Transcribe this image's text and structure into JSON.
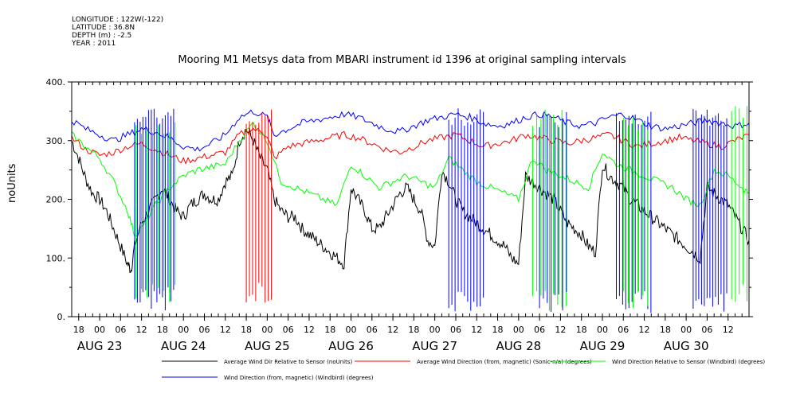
{
  "meta": {
    "longitude": "LONGITUDE : 122W(-122)",
    "latitude": "LATITUDE : 36.8N",
    "depth": "DEPTH (m) : -2.5",
    "year": "YEAR : 2011"
  },
  "chart_data": {
    "type": "line",
    "title": "Mooring M1 Metsys data from MBARI instrument id 1396 at original sampling intervals",
    "ylabel": "noUnits",
    "xlabel": "",
    "ylim": [
      0,
      400
    ],
    "yticks": [
      "0.",
      "100.",
      "200.",
      "300.",
      "400."
    ],
    "x_range_hours": [
      -8,
      186
    ],
    "hour_ticks": [
      "18",
      "00",
      "06",
      "12",
      "18",
      "00",
      "06",
      "12",
      "18",
      "00",
      "06",
      "12",
      "18",
      "00",
      "06",
      "12",
      "18",
      "00",
      "06",
      "12",
      "18",
      "00",
      "06",
      "12",
      "18",
      "00",
      "06",
      "12",
      "18",
      "00",
      "06",
      "12"
    ],
    "day_labels": [
      "AUG 23",
      "AUG 24",
      "AUG 25",
      "AUG 26",
      "AUG 27",
      "AUG 28",
      "AUG 29",
      "AUG 30"
    ],
    "grid": false,
    "series": [
      {
        "name": "Average Wind Dir Relative to Sensor (noUnits)",
        "color": "#000000",
        "kind": "smooth",
        "points": [
          [
            -8,
            300
          ],
          [
            -6,
            270
          ],
          [
            -4,
            235
          ],
          [
            -2,
            210
          ],
          [
            0,
            200
          ],
          [
            2,
            180
          ],
          [
            4,
            150
          ],
          [
            6,
            120
          ],
          [
            8,
            90
          ],
          [
            9,
            80
          ],
          [
            10,
            120
          ],
          [
            12,
            160
          ],
          [
            14,
            180
          ],
          [
            16,
            200
          ],
          [
            18,
            220
          ],
          [
            20,
            200
          ],
          [
            22,
            180
          ],
          [
            24,
            170
          ],
          [
            26,
            190
          ],
          [
            28,
            200
          ],
          [
            30,
            210
          ],
          [
            32,
            200
          ],
          [
            34,
            200
          ],
          [
            36,
            230
          ],
          [
            38,
            240
          ],
          [
            40,
            300
          ],
          [
            42,
            320
          ],
          [
            44,
            300
          ],
          [
            46,
            270
          ],
          [
            48,
            250
          ],
          [
            50,
            200
          ],
          [
            52,
            180
          ],
          [
            54,
            170
          ],
          [
            56,
            170
          ],
          [
            58,
            150
          ],
          [
            60,
            140
          ],
          [
            62,
            130
          ],
          [
            64,
            120
          ],
          [
            66,
            110
          ],
          [
            68,
            100
          ],
          [
            70,
            90
          ],
          [
            72,
            220
          ],
          [
            74,
            200
          ],
          [
            76,
            180
          ],
          [
            78,
            150
          ],
          [
            80,
            150
          ],
          [
            82,
            170
          ],
          [
            84,
            190
          ],
          [
            86,
            210
          ],
          [
            88,
            220
          ],
          [
            90,
            200
          ],
          [
            92,
            180
          ],
          [
            94,
            130
          ],
          [
            96,
            120
          ],
          [
            98,
            250
          ],
          [
            100,
            230
          ],
          [
            102,
            200
          ],
          [
            104,
            180
          ],
          [
            106,
            170
          ],
          [
            108,
            160
          ],
          [
            110,
            150
          ],
          [
            112,
            140
          ],
          [
            114,
            130
          ],
          [
            116,
            120
          ],
          [
            118,
            100
          ],
          [
            120,
            90
          ],
          [
            122,
            240
          ],
          [
            124,
            230
          ],
          [
            126,
            220
          ],
          [
            128,
            210
          ],
          [
            130,
            200
          ],
          [
            132,
            180
          ],
          [
            134,
            160
          ],
          [
            136,
            150
          ],
          [
            138,
            140
          ],
          [
            140,
            120
          ],
          [
            142,
            110
          ],
          [
            144,
            260
          ],
          [
            146,
            240
          ],
          [
            148,
            230
          ],
          [
            150,
            220
          ],
          [
            152,
            200
          ],
          [
            154,
            190
          ],
          [
            156,
            180
          ],
          [
            158,
            170
          ],
          [
            160,
            160
          ],
          [
            162,
            150
          ],
          [
            164,
            140
          ],
          [
            166,
            130
          ],
          [
            168,
            120
          ],
          [
            170,
            110
          ],
          [
            172,
            100
          ],
          [
            174,
            220
          ],
          [
            176,
            210
          ],
          [
            178,
            200
          ],
          [
            180,
            190
          ],
          [
            182,
            170
          ],
          [
            184,
            150
          ],
          [
            186,
            130
          ]
        ]
      },
      {
        "name": "Average Wind Direction (from, magnetic) (Sonic-n/a) (degrees)",
        "color": "#ff0000",
        "kind": "smooth",
        "points": [
          [
            -8,
            305
          ],
          [
            -4,
            285
          ],
          [
            0,
            275
          ],
          [
            4,
            280
          ],
          [
            8,
            290
          ],
          [
            12,
            295
          ],
          [
            16,
            285
          ],
          [
            20,
            275
          ],
          [
            24,
            265
          ],
          [
            28,
            270
          ],
          [
            32,
            275
          ],
          [
            36,
            280
          ],
          [
            40,
            310
          ],
          [
            44,
            320
          ],
          [
            48,
            310
          ],
          [
            50,
            270
          ],
          [
            54,
            290
          ],
          [
            58,
            295
          ],
          [
            62,
            300
          ],
          [
            66,
            305
          ],
          [
            70,
            310
          ],
          [
            74,
            305
          ],
          [
            78,
            295
          ],
          [
            82,
            285
          ],
          [
            86,
            280
          ],
          [
            90,
            290
          ],
          [
            94,
            300
          ],
          [
            98,
            305
          ],
          [
            102,
            310
          ],
          [
            106,
            300
          ],
          [
            110,
            290
          ],
          [
            114,
            295
          ],
          [
            118,
            300
          ],
          [
            122,
            310
          ],
          [
            126,
            305
          ],
          [
            130,
            300
          ],
          [
            134,
            295
          ],
          [
            138,
            300
          ],
          [
            142,
            305
          ],
          [
            146,
            310
          ],
          [
            150,
            300
          ],
          [
            154,
            290
          ],
          [
            158,
            295
          ],
          [
            162,
            300
          ],
          [
            166,
            305
          ],
          [
            170,
            300
          ],
          [
            174,
            295
          ],
          [
            178,
            290
          ],
          [
            182,
            300
          ],
          [
            186,
            310
          ]
        ]
      },
      {
        "name": "Wind Direction Relative to Sensor (Windbird) (degrees)",
        "color": "#00ff00",
        "kind": "smooth",
        "points": [
          [
            -8,
            310
          ],
          [
            -4,
            290
          ],
          [
            0,
            270
          ],
          [
            4,
            230
          ],
          [
            8,
            180
          ],
          [
            10,
            140
          ],
          [
            12,
            150
          ],
          [
            16,
            190
          ],
          [
            20,
            220
          ],
          [
            24,
            240
          ],
          [
            28,
            250
          ],
          [
            32,
            255
          ],
          [
            36,
            260
          ],
          [
            40,
            300
          ],
          [
            44,
            330
          ],
          [
            48,
            300
          ],
          [
            52,
            230
          ],
          [
            56,
            220
          ],
          [
            60,
            210
          ],
          [
            64,
            200
          ],
          [
            68,
            190
          ],
          [
            72,
            260
          ],
          [
            76,
            240
          ],
          [
            80,
            220
          ],
          [
            84,
            230
          ],
          [
            88,
            240
          ],
          [
            92,
            230
          ],
          [
            96,
            220
          ],
          [
            100,
            270
          ],
          [
            104,
            250
          ],
          [
            108,
            230
          ],
          [
            112,
            220
          ],
          [
            116,
            210
          ],
          [
            120,
            200
          ],
          [
            124,
            270
          ],
          [
            128,
            250
          ],
          [
            132,
            240
          ],
          [
            136,
            230
          ],
          [
            140,
            220
          ],
          [
            144,
            280
          ],
          [
            148,
            260
          ],
          [
            152,
            250
          ],
          [
            156,
            240
          ],
          [
            160,
            230
          ],
          [
            164,
            220
          ],
          [
            168,
            200
          ],
          [
            172,
            190
          ],
          [
            176,
            250
          ],
          [
            180,
            240
          ],
          [
            184,
            220
          ],
          [
            186,
            210
          ]
        ]
      },
      {
        "name": "Wind Direction (from, magnetic) (Windbird) (degrees)",
        "color": "#0000ff",
        "kind": "smooth",
        "points": [
          [
            -8,
            335
          ],
          [
            -4,
            320
          ],
          [
            0,
            310
          ],
          [
            4,
            300
          ],
          [
            8,
            310
          ],
          [
            12,
            320
          ],
          [
            16,
            315
          ],
          [
            20,
            305
          ],
          [
            24,
            290
          ],
          [
            28,
            285
          ],
          [
            32,
            295
          ],
          [
            36,
            310
          ],
          [
            40,
            340
          ],
          [
            44,
            350
          ],
          [
            48,
            340
          ],
          [
            50,
            310
          ],
          [
            54,
            320
          ],
          [
            58,
            330
          ],
          [
            62,
            335
          ],
          [
            66,
            340
          ],
          [
            70,
            345
          ],
          [
            74,
            340
          ],
          [
            78,
            330
          ],
          [
            82,
            320
          ],
          [
            86,
            315
          ],
          [
            90,
            325
          ],
          [
            94,
            335
          ],
          [
            98,
            340
          ],
          [
            102,
            345
          ],
          [
            106,
            340
          ],
          [
            110,
            330
          ],
          [
            114,
            325
          ],
          [
            118,
            330
          ],
          [
            122,
            340
          ],
          [
            126,
            345
          ],
          [
            130,
            340
          ],
          [
            134,
            330
          ],
          [
            138,
            325
          ],
          [
            142,
            330
          ],
          [
            146,
            340
          ],
          [
            150,
            345
          ],
          [
            154,
            335
          ],
          [
            158,
            325
          ],
          [
            162,
            320
          ],
          [
            166,
            325
          ],
          [
            170,
            330
          ],
          [
            174,
            335
          ],
          [
            178,
            330
          ],
          [
            182,
            325
          ],
          [
            186,
            330
          ]
        ]
      }
    ],
    "spikes": [
      {
        "color": "#0000ff",
        "from": 10,
        "to": 22,
        "step": 0.8,
        "low": 10,
        "high": 355
      },
      {
        "color": "#00ff00",
        "from": 10.4,
        "to": 22,
        "step": 1.6,
        "low": 20,
        "high": 340
      },
      {
        "color": "#ff0000",
        "from": 42,
        "to": 50,
        "step": 0.9,
        "low": 20,
        "high": 355
      },
      {
        "color": "#0000ff",
        "from": 100,
        "to": 110,
        "step": 0.9,
        "low": 5,
        "high": 355
      },
      {
        "color": "#00ff00",
        "from": 124,
        "to": 134,
        "step": 1.2,
        "low": 10,
        "high": 355
      },
      {
        "color": "#0000ff",
        "from": 126,
        "to": 134,
        "step": 1.1,
        "low": 5,
        "high": 350
      },
      {
        "color": "#0000ff",
        "from": 148,
        "to": 158,
        "step": 0.9,
        "low": 5,
        "high": 355
      },
      {
        "color": "#00ff00",
        "from": 150,
        "to": 158,
        "step": 1.4,
        "low": 10,
        "high": 340
      },
      {
        "color": "#0000ff",
        "from": 170,
        "to": 180,
        "step": 0.8,
        "low": 5,
        "high": 355
      },
      {
        "color": "#00ff00",
        "from": 181,
        "to": 186,
        "step": 1.1,
        "low": 20,
        "high": 360
      }
    ]
  }
}
